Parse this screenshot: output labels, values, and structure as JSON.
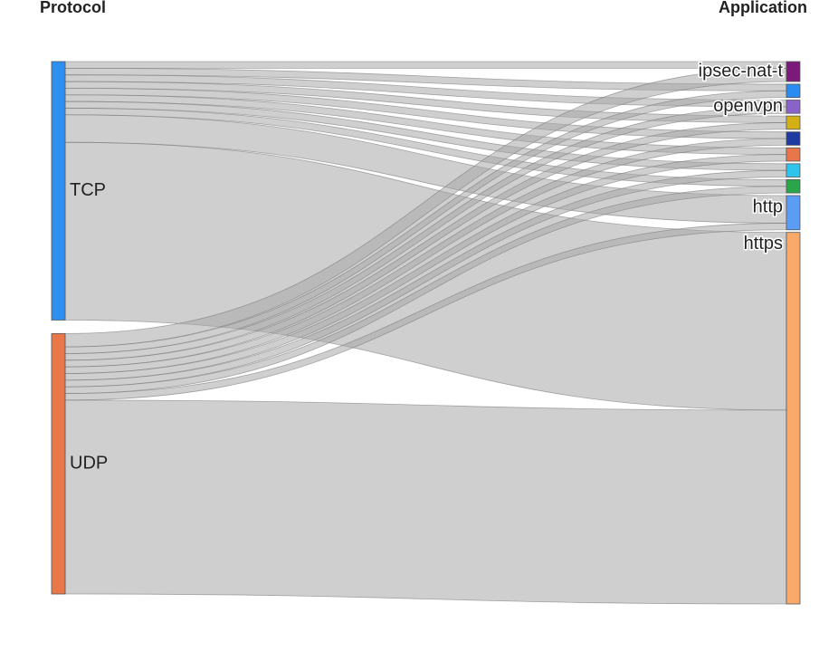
{
  "chart_data": {
    "type": "sankey",
    "source_title": "Protocol",
    "target_title": "Application",
    "targets": [
      {
        "name": "ipsec-nat-t",
        "color": "#7b1a7b"
      },
      {
        "name": null,
        "color": "#2a8cf0"
      },
      {
        "name": "openvpn",
        "color": "#8a63c9"
      },
      {
        "name": null,
        "color": "#d4b017"
      },
      {
        "name": null,
        "color": "#1f3aa0"
      },
      {
        "name": null,
        "color": "#e8764a"
      },
      {
        "name": null,
        "color": "#2fc4ec"
      },
      {
        "name": null,
        "color": "#2aa64a"
      },
      {
        "name": "http",
        "color": "#5b9cf5"
      },
      {
        "name": "https",
        "color": "#f9a96a"
      }
    ],
    "sources": [
      {
        "name": "TCP",
        "color": "#2d8ff0",
        "values": [
          7,
          7,
          7,
          7,
          7,
          7,
          7,
          7,
          29,
          187
        ]
      },
      {
        "name": "UDP",
        "color": "#e8784a",
        "values": [
          14,
          7,
          7,
          7,
          7,
          7,
          7,
          7,
          7,
          204
        ]
      }
    ]
  }
}
